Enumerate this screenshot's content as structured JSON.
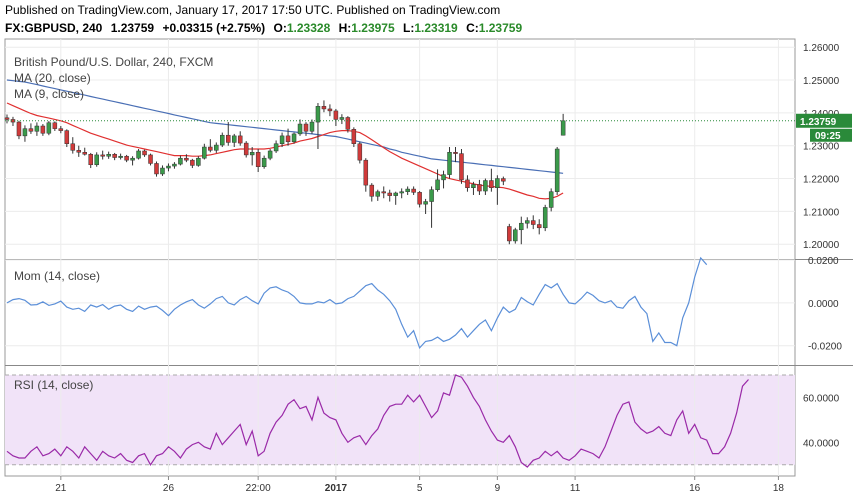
{
  "header": {
    "published": "Published on TradingView.com, January 17, 2017 17:50 UTC. Published on TradingView.com",
    "symbol": "FX:GBPUSD, 240",
    "last": "1.23759",
    "change": "+0.03315 (+2.75%)",
    "o_label": "O:",
    "o": "1.23328",
    "h_label": "H:",
    "h": "1.23975",
    "l_label": "L:",
    "l": "1.23319",
    "c_label": "C:",
    "c": "1.23759"
  },
  "panes": {
    "price": {
      "title": "British Pound/U.S. Dollar, 240, FXCM",
      "ma20": "MA (20, close)",
      "ma9": "MA (9, close)",
      "last_price_label": "1.23759",
      "countdown_label": "09:25"
    },
    "mom": {
      "title": "Mom (14, close)"
    },
    "rsi": {
      "title": "RSI (14, close)"
    }
  },
  "colors": {
    "up": "#3a9a4a",
    "down": "#d03a3a",
    "ma20": "#4a6fb5",
    "ma9": "#e03030",
    "mom": "#5b8fd8",
    "rsi": "#9a2aa8",
    "rsi_band": "#f1e3f8",
    "last_price": "#2a8a3a"
  },
  "chart_data": [
    {
      "type": "candlestick",
      "title": "British Pound/U.S. Dollar, 240, FXCM",
      "y_ticks": [
        1.2,
        1.21,
        1.22,
        1.23,
        1.24,
        1.25,
        1.26
      ],
      "y_tick_labels": [
        "1.20000",
        "1.21000",
        "1.22000",
        "1.23000",
        "1.24000",
        "1.25000",
        "1.26000"
      ],
      "ylim": [
        1.1955,
        1.2625
      ],
      "x_ticks": [
        {
          "i": 9,
          "label": "21"
        },
        {
          "i": 27,
          "label": "26"
        },
        {
          "i": 42,
          "label": "22:00"
        },
        {
          "i": 55,
          "label": "2017"
        },
        {
          "i": 69,
          "label": "5"
        },
        {
          "i": 82,
          "label": "9"
        },
        {
          "i": 95,
          "label": "11"
        },
        {
          "i": 115,
          "label": "16"
        },
        {
          "i": 129,
          "label": "18"
        }
      ],
      "candles": [
        [
          1.2385,
          1.2395,
          1.2368,
          1.238
        ],
        [
          1.238,
          1.2388,
          1.236,
          1.2372
        ],
        [
          1.2372,
          1.2376,
          1.232,
          1.233
        ],
        [
          1.233,
          1.2362,
          1.2312,
          1.2352
        ],
        [
          1.2352,
          1.2368,
          1.2336,
          1.2344
        ],
        [
          1.2344,
          1.2371,
          1.233,
          1.236
        ],
        [
          1.236,
          1.2366,
          1.233,
          1.2338
        ],
        [
          1.2338,
          1.2375,
          1.2332,
          1.237
        ],
        [
          1.237,
          1.2374,
          1.2345,
          1.2352
        ],
        [
          1.2352,
          1.236,
          1.2338,
          1.2346
        ],
        [
          1.2346,
          1.235,
          1.2296,
          1.2306
        ],
        [
          1.2306,
          1.2326,
          1.2276,
          1.2286
        ],
        [
          1.2286,
          1.23,
          1.2266,
          1.228
        ],
        [
          1.228,
          1.2294,
          1.227,
          1.2274
        ],
        [
          1.2274,
          1.2278,
          1.2232,
          1.2242
        ],
        [
          1.2242,
          1.228,
          1.2236,
          1.2272
        ],
        [
          1.2272,
          1.2285,
          1.2258,
          1.2268
        ],
        [
          1.2268,
          1.2282,
          1.226,
          1.2274
        ],
        [
          1.2274,
          1.2278,
          1.2256,
          1.2264
        ],
        [
          1.2264,
          1.2276,
          1.2258,
          1.2268
        ],
        [
          1.2268,
          1.2272,
          1.225,
          1.2256
        ],
        [
          1.2256,
          1.2268,
          1.224,
          1.2262
        ],
        [
          1.2262,
          1.229,
          1.2258,
          1.2284
        ],
        [
          1.2284,
          1.2288,
          1.2266,
          1.2272
        ],
        [
          1.2272,
          1.2276,
          1.224,
          1.2246
        ],
        [
          1.2246,
          1.2252,
          1.2206,
          1.2214
        ],
        [
          1.2214,
          1.224,
          1.2208,
          1.2232
        ],
        [
          1.2232,
          1.2246,
          1.2222,
          1.2238
        ],
        [
          1.2238,
          1.225,
          1.223,
          1.2244
        ],
        [
          1.2244,
          1.227,
          1.224,
          1.2262
        ],
        [
          1.2262,
          1.2274,
          1.225,
          1.2256
        ],
        [
          1.2256,
          1.226,
          1.2232,
          1.224
        ],
        [
          1.224,
          1.2268,
          1.2236,
          1.2262
        ],
        [
          1.2262,
          1.2306,
          1.2258,
          1.2296
        ],
        [
          1.2296,
          1.232,
          1.228,
          1.2286
        ],
        [
          1.2286,
          1.231,
          1.2278,
          1.2302
        ],
        [
          1.2302,
          1.234,
          1.2296,
          1.2332
        ],
        [
          1.2332,
          1.2372,
          1.23,
          1.231
        ],
        [
          1.231,
          1.2336,
          1.2296,
          1.233
        ],
        [
          1.233,
          1.2344,
          1.23,
          1.2308
        ],
        [
          1.2308,
          1.2314,
          1.2264,
          1.2272
        ],
        [
          1.2272,
          1.2296,
          1.224,
          1.228
        ],
        [
          1.228,
          1.229,
          1.222,
          1.2236
        ],
        [
          1.2236,
          1.227,
          1.223,
          1.2262
        ],
        [
          1.2262,
          1.229,
          1.2256,
          1.2284
        ],
        [
          1.2284,
          1.2316,
          1.2278,
          1.2306
        ],
        [
          1.2306,
          1.234,
          1.2296,
          1.233
        ],
        [
          1.233,
          1.2352,
          1.23,
          1.2312
        ],
        [
          1.2312,
          1.234,
          1.2306,
          1.2336
        ],
        [
          1.2336,
          1.238,
          1.233,
          1.2366
        ],
        [
          1.2366,
          1.2372,
          1.233,
          1.2344
        ],
        [
          1.2344,
          1.238,
          1.2336,
          1.2372
        ],
        [
          1.2372,
          1.243,
          1.229,
          1.242
        ],
        [
          1.242,
          1.2438,
          1.2402,
          1.2412
        ],
        [
          1.2412,
          1.2426,
          1.239,
          1.2406
        ],
        [
          1.2406,
          1.2412,
          1.236,
          1.238
        ],
        [
          1.238,
          1.2396,
          1.2366,
          1.2386
        ],
        [
          1.2386,
          1.239,
          1.234,
          1.235
        ],
        [
          1.235,
          1.2356,
          1.2296,
          1.2306
        ],
        [
          1.2306,
          1.2312,
          1.2246,
          1.2256
        ],
        [
          1.2256,
          1.2262,
          1.216,
          1.218
        ],
        [
          1.218,
          1.2186,
          1.213,
          1.2146
        ],
        [
          1.2146,
          1.2166,
          1.2132,
          1.216
        ],
        [
          1.216,
          1.2176,
          1.214,
          1.2156
        ],
        [
          1.2156,
          1.2166,
          1.213,
          1.2148
        ],
        [
          1.2148,
          1.216,
          1.212,
          1.2156
        ],
        [
          1.2156,
          1.217,
          1.214,
          1.216
        ],
        [
          1.216,
          1.2176,
          1.215,
          1.2168
        ],
        [
          1.2168,
          1.2176,
          1.215,
          1.2158
        ],
        [
          1.2158,
          1.2162,
          1.2112,
          1.2122
        ],
        [
          1.2122,
          1.2138,
          1.2092,
          1.213
        ],
        [
          1.213,
          1.2176,
          1.205,
          1.2166
        ],
        [
          1.2166,
          1.2228,
          1.216,
          1.2196
        ],
        [
          1.2196,
          1.2224,
          1.217,
          1.2212
        ],
        [
          1.2212,
          1.2296,
          1.22,
          1.228
        ],
        [
          1.228,
          1.2296,
          1.225,
          1.2276
        ],
        [
          1.2276,
          1.229,
          1.2184,
          1.2196
        ],
        [
          1.2196,
          1.221,
          1.216,
          1.2172
        ],
        [
          1.2172,
          1.219,
          1.215,
          1.2182
        ],
        [
          1.2182,
          1.2196,
          1.215,
          1.2162
        ],
        [
          1.2162,
          1.22,
          1.215,
          1.2194
        ],
        [
          1.2194,
          1.223,
          1.216,
          1.2172
        ],
        [
          1.2172,
          1.221,
          1.212,
          1.22
        ],
        [
          1.22,
          1.2206,
          1.218,
          1.2192
        ],
        [
          1.2054,
          1.2062,
          1.2,
          1.201
        ],
        [
          1.201,
          1.205,
          1.2002,
          1.2044
        ],
        [
          1.2044,
          1.2084,
          1.2,
          1.2064
        ],
        [
          1.2064,
          1.2082,
          1.2048,
          1.2072
        ],
        [
          1.2072,
          1.2088,
          1.2046,
          1.206
        ],
        [
          1.206,
          1.2076,
          1.203,
          1.205
        ],
        [
          1.205,
          1.212,
          1.204,
          1.2112
        ],
        [
          1.2112,
          1.217,
          1.21,
          1.216
        ],
        [
          1.216,
          1.2296,
          1.215,
          1.229
        ],
        [
          1.2332,
          1.2397,
          1.2331,
          1.2376
        ]
      ],
      "ma20": [
        1.243,
        1.2422,
        1.2414,
        1.2406,
        1.2398,
        1.2392,
        1.2388,
        1.2384,
        1.238,
        1.2376,
        1.237,
        1.2362,
        1.2354,
        1.2346,
        1.2338,
        1.2332,
        1.2326,
        1.232,
        1.2314,
        1.2308,
        1.2302,
        1.2298,
        1.2294,
        1.229,
        1.2286,
        1.2282,
        1.2278,
        1.2274,
        1.227,
        1.227,
        1.227,
        1.2268,
        1.2268,
        1.227,
        1.2272,
        1.2276,
        1.228,
        1.2284,
        1.2288,
        1.229,
        1.229,
        1.229,
        1.229,
        1.229,
        1.2292,
        1.2296,
        1.23,
        1.2304,
        1.2308,
        1.2314,
        1.2318,
        1.2322,
        1.2328,
        1.2334,
        1.234,
        1.2344,
        1.2346,
        1.2346,
        1.2344,
        1.234,
        1.233,
        1.2318,
        1.2306,
        1.2294,
        1.2282,
        1.2272,
        1.2262,
        1.2254,
        1.2246,
        1.2238,
        1.223,
        1.2222,
        1.2214,
        1.2206,
        1.22,
        1.2196,
        1.2192,
        1.2188,
        1.2184,
        1.218,
        1.2178,
        1.2176,
        1.2174,
        1.2172,
        1.2168,
        1.2162,
        1.2156,
        1.215,
        1.2146,
        1.214,
        1.2138,
        1.214,
        1.2146,
        1.2156
      ],
      "ma50": [
        1.25,
        1.2498,
        1.2496,
        1.2494,
        1.249,
        1.2486,
        1.2482,
        1.2478,
        1.2474,
        1.247,
        1.2466,
        1.2462,
        1.2458,
        1.2454,
        1.245,
        1.2446,
        1.2442,
        1.2438,
        1.2434,
        1.243,
        1.2426,
        1.2422,
        1.2418,
        1.2414,
        1.241,
        1.2406,
        1.2402,
        1.2398,
        1.2394,
        1.239,
        1.2386,
        1.2382,
        1.2378,
        1.2374,
        1.237,
        1.2368,
        1.2366,
        1.2364,
        1.2362,
        1.236,
        1.2358,
        1.2356,
        1.2354,
        1.2352,
        1.235,
        1.2348,
        1.2346,
        1.2344,
        1.2342,
        1.234,
        1.2338,
        1.2336,
        1.2334,
        1.2332,
        1.233,
        1.2328,
        1.2324,
        1.232,
        1.2316,
        1.2312,
        1.2308,
        1.2304,
        1.23,
        1.2296,
        1.229,
        1.2286,
        1.228,
        1.2276,
        1.2272,
        1.2268,
        1.2264,
        1.226,
        1.2258,
        1.2256,
        1.2254,
        1.2252,
        1.225,
        1.2248,
        1.2246,
        1.2244,
        1.2242,
        1.224,
        1.2238,
        1.2236,
        1.2234,
        1.2232,
        1.223,
        1.2228,
        1.2226,
        1.2224,
        1.2222,
        1.222,
        1.2218,
        1.2216
      ]
    },
    {
      "type": "line",
      "title": "Mom (14, close)",
      "y_ticks": [
        -0.02,
        0,
        0.02
      ],
      "y_tick_labels": [
        "-0.0200",
        "0.0000",
        "0.0200"
      ],
      "ylim": [
        -0.029,
        0.02
      ],
      "values": [
        0.0,
        0.0015,
        0.002,
        0.0012,
        -0.001,
        -0.0008,
        0.0005,
        -0.0012,
        -0.0005,
        0.0008,
        -0.002,
        -0.003,
        -0.0025,
        -0.004,
        -0.001,
        -0.002,
        -0.0008,
        -0.003,
        -0.0015,
        -0.001,
        -0.003,
        -0.004,
        -0.0015,
        -0.003,
        -0.002,
        -0.0015,
        -0.0035,
        -0.006,
        -0.003,
        -0.001,
        0.0005,
        0.0015,
        -0.001,
        -0.0025,
        -0.0005,
        0.002,
        0.003,
        0.0,
        -0.001,
        0.0015,
        0.003,
        0.001,
        -0.0005,
        0.0045,
        0.007,
        0.0075,
        0.006,
        0.005,
        0.003,
        0.0,
        -0.0005,
        -0.0005,
        0.0005,
        0.0,
        0.0015,
        -0.0005,
        0.0,
        0.002,
        0.003,
        0.0055,
        0.008,
        0.009,
        0.006,
        0.004,
        0.001,
        -0.003,
        -0.01,
        -0.016,
        -0.013,
        -0.021,
        -0.018,
        -0.0175,
        -0.016,
        -0.018,
        -0.017,
        -0.015,
        -0.012,
        -0.016,
        -0.013,
        -0.01,
        -0.008,
        -0.013,
        -0.007,
        -0.002,
        -0.0045,
        -0.003,
        0.0025,
        0.0005,
        -0.001,
        0.004,
        0.0085,
        0.007,
        0.009,
        0.004,
        0.0,
        -0.0005,
        0.002,
        0.005,
        0.0035,
        0.001,
        0.0,
        0.001,
        -0.002,
        -0.0025,
        0.001,
        0.003,
        -0.002,
        -0.005,
        -0.018,
        -0.014,
        -0.0185,
        -0.0185,
        -0.02,
        -0.007,
        0.0,
        0.012,
        0.021,
        0.0178
      ]
    },
    {
      "type": "line",
      "title": "RSI (14, close)",
      "y_ticks": [
        40,
        60
      ],
      "y_tick_labels": [
        "40.0000",
        "60.0000"
      ],
      "ylim": [
        25,
        74
      ],
      "band": [
        30,
        70
      ],
      "values": [
        36,
        34,
        33,
        33,
        36,
        38,
        34,
        35,
        37,
        34,
        38,
        36,
        33,
        38,
        35,
        32,
        36,
        34,
        33,
        35,
        32,
        31,
        34,
        35,
        30,
        34,
        35,
        38,
        36,
        33,
        37,
        39,
        40,
        38,
        37,
        44,
        39,
        42,
        45,
        48,
        39,
        45,
        34,
        36,
        44,
        49,
        52,
        57,
        59,
        55,
        56,
        50,
        60,
        53,
        51,
        50,
        44,
        40,
        42,
        43,
        39,
        43,
        46,
        52,
        56,
        57,
        57,
        61,
        58,
        61,
        56,
        51,
        54,
        62,
        61,
        70,
        69,
        65,
        60,
        56,
        50,
        45,
        41,
        40,
        43,
        38,
        31,
        29,
        32,
        33,
        36,
        34,
        36,
        33,
        32,
        34,
        37,
        36,
        35,
        33,
        38,
        45,
        52,
        57,
        58,
        49,
        46,
        44,
        45,
        47,
        44,
        43,
        50,
        54,
        44,
        48,
        42,
        41,
        35,
        35,
        38,
        44,
        53,
        65,
        68
      ]
    }
  ]
}
